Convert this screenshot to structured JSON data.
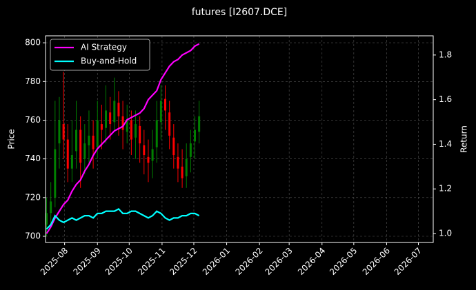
{
  "chart_data": {
    "type": "candlestick",
    "title": "futures [I2607.DCE]",
    "y_label": "Price",
    "y2_label": "Return",
    "x": [
      "2025-07-15",
      "2025-07-19",
      "2025-07-23",
      "2025-07-27",
      "2025-07-31",
      "2025-08-04",
      "2025-08-08",
      "2025-08-12",
      "2025-08-16",
      "2025-08-20",
      "2025-08-24",
      "2025-08-28",
      "2025-09-01",
      "2025-09-05",
      "2025-09-09",
      "2025-09-13",
      "2025-09-17",
      "2025-09-21",
      "2025-09-25",
      "2025-09-29",
      "2025-10-03",
      "2025-10-07",
      "2025-10-11",
      "2025-10-15",
      "2025-10-19",
      "2025-10-23",
      "2025-10-27",
      "2025-10-31",
      "2025-11-04",
      "2025-11-08",
      "2025-11-12",
      "2025-11-16",
      "2025-11-20",
      "2025-11-24",
      "2025-11-28",
      "2025-12-02",
      "2025-12-06"
    ],
    "open": [
      706,
      712,
      720,
      748,
      758,
      750,
      735,
      744,
      755,
      740,
      747,
      752,
      746,
      758,
      756,
      764,
      759,
      769,
      762,
      754,
      760,
      751,
      757,
      747,
      741,
      739,
      746,
      759,
      771,
      764,
      751,
      741,
      736,
      731,
      741,
      749,
      754
    ],
    "high": [
      720,
      728,
      770,
      772,
      785,
      758,
      760,
      770,
      762,
      758,
      765,
      760,
      770,
      768,
      778,
      772,
      782,
      775,
      770,
      768,
      765,
      765,
      762,
      755,
      750,
      755,
      770,
      778,
      778,
      770,
      758,
      748,
      745,
      748,
      755,
      762,
      770
    ],
    "low": [
      700,
      705,
      715,
      735,
      740,
      728,
      728,
      735,
      725,
      732,
      738,
      735,
      740,
      745,
      748,
      750,
      755,
      752,
      745,
      748,
      742,
      740,
      738,
      732,
      728,
      730,
      738,
      750,
      755,
      745,
      735,
      728,
      725,
      725,
      733,
      740,
      748
    ],
    "close": [
      712,
      718,
      745,
      760,
      750,
      735,
      742,
      755,
      738,
      748,
      752,
      745,
      760,
      755,
      765,
      758,
      770,
      762,
      755,
      760,
      750,
      758,
      748,
      742,
      738,
      745,
      760,
      770,
      765,
      752,
      742,
      735,
      730,
      740,
      748,
      755,
      762
    ],
    "up_color": "#008000",
    "down_color": "#ff0000",
    "series": [
      {
        "name": "AI Strategy",
        "color": "#ff00ff",
        "axis": "y2",
        "values": [
          1.0,
          1.03,
          1.07,
          1.1,
          1.13,
          1.15,
          1.19,
          1.22,
          1.24,
          1.28,
          1.31,
          1.35,
          1.38,
          1.4,
          1.42,
          1.44,
          1.46,
          1.47,
          1.48,
          1.51,
          1.52,
          1.53,
          1.54,
          1.56,
          1.6,
          1.62,
          1.64,
          1.69,
          1.72,
          1.75,
          1.77,
          1.78,
          1.8,
          1.81,
          1.82,
          1.84,
          1.85
        ]
      },
      {
        "name": "Buy-and-Hold",
        "color": "#00ffff",
        "axis": "y2",
        "values": [
          1.02,
          1.04,
          1.08,
          1.06,
          1.05,
          1.06,
          1.07,
          1.06,
          1.07,
          1.08,
          1.08,
          1.07,
          1.09,
          1.09,
          1.1,
          1.1,
          1.1,
          1.11,
          1.09,
          1.09,
          1.1,
          1.1,
          1.09,
          1.08,
          1.07,
          1.08,
          1.1,
          1.09,
          1.07,
          1.06,
          1.07,
          1.07,
          1.08,
          1.08,
          1.09,
          1.09,
          1.08
        ]
      }
    ],
    "xlim": [
      "2025-07-14",
      "2026-07-15"
    ],
    "xticks": [
      "2025-08",
      "2025-09",
      "2025-10",
      "2025-11",
      "2025-12",
      "2026-01",
      "2026-02",
      "2026-03",
      "2026-04",
      "2026-05",
      "2026-06",
      "2026-07"
    ],
    "ylim": [
      696.8,
      803.6
    ],
    "yticks": [
      700,
      720,
      740,
      760,
      780,
      800
    ],
    "y2lim": [
      0.96,
      1.886
    ],
    "y2ticks": [
      {
        "value": 1.0,
        "label": "1.0"
      },
      {
        "value": 1.2,
        "label": "1.2"
      },
      {
        "value": 1.4,
        "label": "1.4"
      },
      {
        "value": 1.6,
        "label": "1.6"
      },
      {
        "value": 1.8,
        "label": "1.8"
      }
    ],
    "grid": true,
    "legend": "upper-left"
  }
}
